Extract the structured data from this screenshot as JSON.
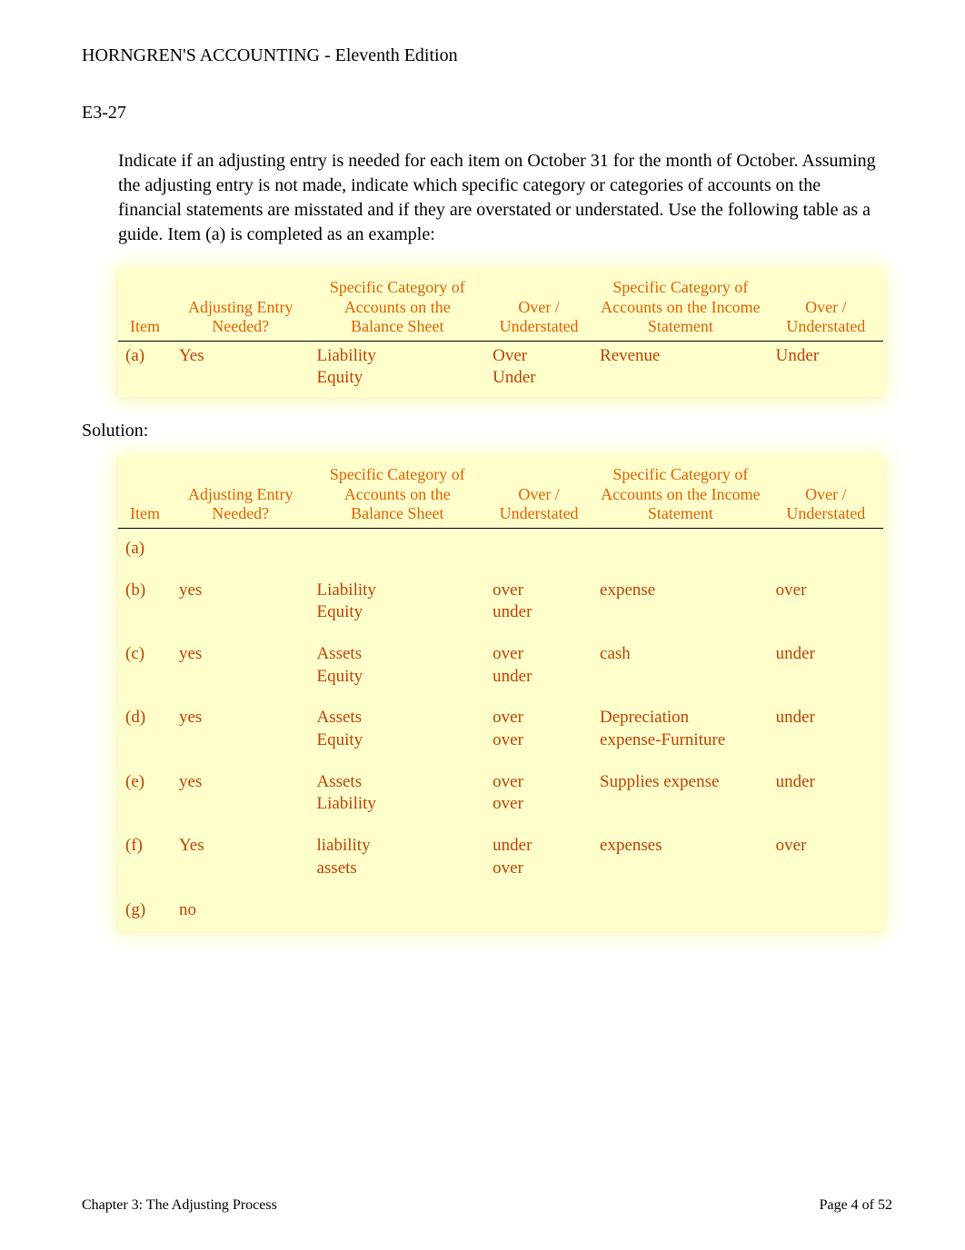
{
  "page_title": "HORNGREN'S ACCOUNTING - Eleventh Edition",
  "exercise_label": "E3-27",
  "problem_text": "Indicate if an adjusting entry is needed for each item on October 31 for the month of October. Assuming the adjusting entry is not made, indicate which specific category or categories of accounts on the financial statements are misstated and if they are overstated or understated. Use the following table as a guide. Item (a) is completed as an example:",
  "headers": {
    "item": "Item",
    "adjusting": "Adjusting Entry Needed?",
    "balance_sheet": "Specific Category of Accounts on the Balance Sheet",
    "over_under": "Over / Understated",
    "income_statement": "Specific Category of Accounts on the Income Statement",
    "over_under2": "Over / Understated"
  },
  "example_row": {
    "item": "(a)",
    "adjusting": "Yes",
    "bs1": "Liability",
    "bs2": "Equity",
    "ou1a": "Over",
    "ou1b": "Under",
    "is": "Revenue",
    "ou2": "Under"
  },
  "solution_label": "Solution:",
  "solution_rows": [
    {
      "item": "(a)",
      "adjusting": "",
      "bs1": "",
      "bs2": "",
      "ou1a": "",
      "ou1b": "",
      "is1": "",
      "is2": "",
      "ou2": ""
    },
    {
      "item": "(b)",
      "adjusting": "yes",
      "bs1": "Liability",
      "bs2": "Equity",
      "ou1a": "over",
      "ou1b": "under",
      "is1": "expense",
      "is2": "",
      "ou2": "over"
    },
    {
      "item": "(c)",
      "adjusting": "yes",
      "bs1": "Assets",
      "bs2": "Equity",
      "ou1a": "over",
      "ou1b": "under",
      "is1": "cash",
      "is2": "",
      "ou2": "under"
    },
    {
      "item": "(d)",
      "adjusting": "yes",
      "bs1": "Assets",
      "bs2": "Equity",
      "ou1a": "over",
      "ou1b": "over",
      "is1": "Depreciation",
      "is2": "expense-Furniture",
      "ou2": "under"
    },
    {
      "item": "(e)",
      "adjusting": "yes",
      "bs1": "Assets",
      "bs2": "Liability",
      "ou1a": "over",
      "ou1b": "over",
      "is1": "Supplies expense",
      "is2": "",
      "ou2": "under"
    },
    {
      "item": "(f)",
      "adjusting": "Yes",
      "bs1": "liability",
      "bs2": "assets",
      "ou1a": "under",
      "ou1b": "over",
      "is1": "expenses",
      "is2": "",
      "ou2": "over"
    },
    {
      "item": "(g)",
      "adjusting": "no",
      "bs1": "",
      "bs2": "",
      "ou1a": "",
      "ou1b": "",
      "is1": "",
      "is2": "",
      "ou2": ""
    }
  ],
  "footer_left": "Chapter 3: The Adjusting Process",
  "footer_right": "Page 4 of 52"
}
